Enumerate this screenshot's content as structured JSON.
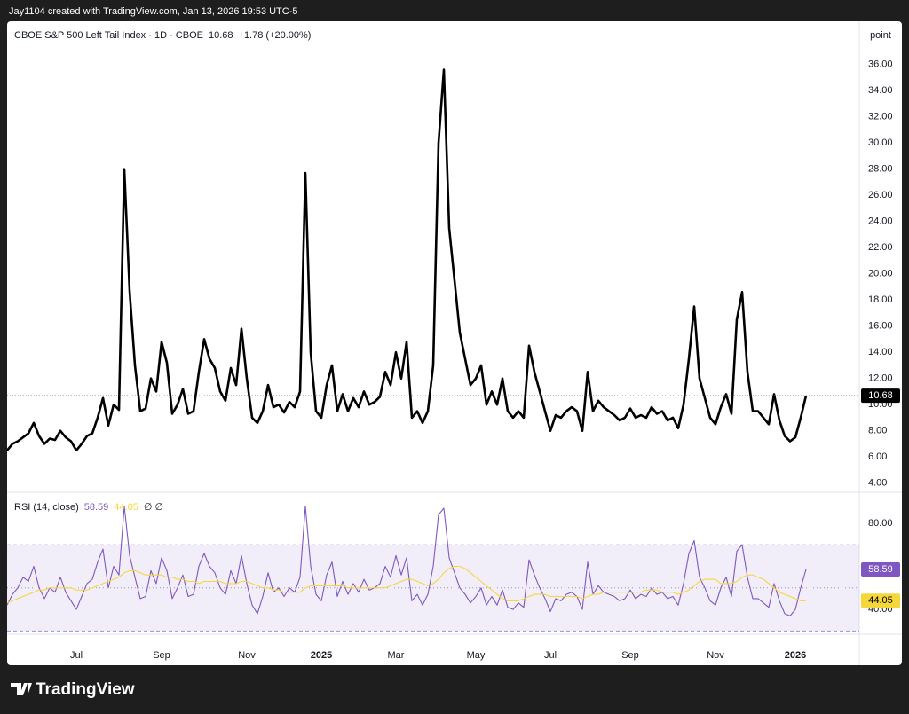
{
  "header": {
    "credit": "Jay1104 created with TradingView.com, Jan 13, 2026 19:53 UTC-5",
    "brand": "TradingView"
  },
  "chart_data": [
    {
      "type": "line",
      "axis_unit": "point",
      "series": [
        {
          "name": "CBOE S&P 500 Left Tail Index · 1D · CBOE",
          "color": "#000000",
          "values": [
            6.5,
            7.0,
            7.2,
            7.5,
            7.8,
            8.6,
            7.6,
            7.0,
            7.4,
            7.3,
            8.0,
            7.5,
            7.2,
            6.5,
            7.0,
            7.6,
            7.8,
            9.0,
            10.5,
            8.4,
            10.0,
            9.6,
            28.0,
            18.7,
            13.0,
            9.5,
            9.7,
            12.0,
            11.0,
            14.8,
            13.2,
            9.3,
            10.0,
            11.2,
            9.3,
            9.5,
            12.5,
            15.0,
            13.5,
            12.8,
            11.0,
            10.3,
            12.8,
            11.5,
            15.8,
            12.0,
            9.0,
            8.6,
            9.5,
            11.5,
            9.8,
            10.0,
            9.4,
            10.2,
            9.8,
            11.0,
            27.7,
            14.0,
            9.5,
            9.0,
            11.5,
            13.0,
            9.5,
            10.8,
            9.5,
            10.5,
            9.8,
            11.0,
            10.0,
            10.2,
            10.6,
            12.5,
            11.5,
            14.0,
            12.0,
            14.8,
            9.0,
            9.5,
            8.6,
            9.5,
            13.0,
            30.0,
            35.6,
            23.5,
            19.5,
            15.5,
            13.5,
            11.5,
            12.0,
            13.0,
            10.0,
            11.0,
            10.0,
            12.0,
            9.5,
            9.0,
            9.5,
            9.0,
            14.5,
            12.5,
            11.0,
            9.5,
            8.0,
            9.2,
            9.0,
            9.5,
            9.8,
            9.5,
            8.0,
            12.5,
            9.5,
            10.3,
            9.8,
            9.5,
            9.2,
            8.8,
            9.0,
            9.7,
            9.0,
            9.2,
            9.0,
            9.8,
            9.3,
            9.5,
            8.8,
            9.0,
            8.2,
            10.0,
            13.5,
            17.5,
            12.0,
            10.5,
            9.0,
            8.5,
            9.8,
            10.8,
            9.3,
            16.5,
            18.6,
            12.5,
            9.5,
            9.5,
            9.0,
            8.5,
            10.8,
            8.8,
            7.6,
            7.2,
            7.5,
            9.0,
            10.68
          ]
        }
      ],
      "change": "+1.78 (+20.00%)",
      "xlim": [
        0,
        160
      ],
      "xticks": [
        {
          "value": 13,
          "label": "Jul"
        },
        {
          "value": 29,
          "label": "Sep"
        },
        {
          "value": 45,
          "label": "Nov"
        },
        {
          "value": 59,
          "label": "2025"
        },
        {
          "value": 73,
          "label": "Mar"
        },
        {
          "value": 88,
          "label": "May"
        },
        {
          "value": 102,
          "label": "Jul"
        },
        {
          "value": 117,
          "label": "Sep"
        },
        {
          "value": 133,
          "label": "Nov"
        },
        {
          "value": 148,
          "label": "2026"
        }
      ],
      "ylim": [
        3.3,
        39.3
      ],
      "yticks": [
        {
          "value": 4,
          "label": "4.00"
        },
        {
          "value": 6,
          "label": "6.00"
        },
        {
          "value": 8,
          "label": "8.00"
        },
        {
          "value": 10,
          "label": "10.00"
        },
        {
          "value": 12,
          "label": "12.00"
        },
        {
          "value": 14,
          "label": "14.00"
        },
        {
          "value": 16,
          "label": "16.00"
        },
        {
          "value": 18,
          "label": "18.00"
        },
        {
          "value": 20,
          "label": "20.00"
        },
        {
          "value": 22,
          "label": "22.00"
        },
        {
          "value": 24,
          "label": "24.00"
        },
        {
          "value": 26,
          "label": "26.00"
        },
        {
          "value": 28,
          "label": "28.00"
        },
        {
          "value": 30,
          "label": "30.00"
        },
        {
          "value": 32,
          "label": "32.00"
        },
        {
          "value": 34,
          "label": "34.00"
        },
        {
          "value": 36,
          "label": "36.00"
        }
      ]
    },
    {
      "type": "line",
      "title": "RSI (14, close)",
      "legend_extra": "∅ ∅",
      "series": [
        {
          "color": "#7e57c2",
          "values": [
            42,
            47,
            50,
            55,
            53,
            60,
            50,
            45,
            50,
            48,
            55,
            48,
            44,
            40,
            46,
            52,
            54,
            62,
            68,
            50,
            60,
            56,
            88,
            65,
            55,
            45,
            46,
            58,
            52,
            64,
            58,
            45,
            50,
            56,
            46,
            47,
            60,
            66,
            60,
            57,
            50,
            47,
            58,
            52,
            65,
            52,
            42,
            38,
            46,
            57,
            48,
            50,
            46,
            50,
            48,
            55,
            88,
            60,
            47,
            44,
            56,
            62,
            46,
            53,
            47,
            52,
            48,
            54,
            49,
            50,
            52,
            60,
            55,
            65,
            56,
            64,
            44,
            47,
            42,
            47,
            60,
            84,
            87,
            64,
            57,
            50,
            47,
            43,
            46,
            50,
            42,
            46,
            42,
            49,
            41,
            40,
            43,
            41,
            63,
            56,
            50,
            45,
            39,
            45,
            44,
            47,
            48,
            46,
            40,
            62,
            47,
            51,
            48,
            47,
            46,
            44,
            45,
            49,
            45,
            47,
            46,
            50,
            47,
            48,
            45,
            46,
            42,
            52,
            66,
            72,
            55,
            50,
            44,
            42,
            50,
            55,
            46,
            67,
            70,
            55,
            45,
            45,
            43,
            41,
            52,
            44,
            38,
            37,
            40,
            50,
            58.59
          ]
        },
        {
          "color": "#f5d73a",
          "values": [
            43,
            44,
            45,
            46,
            47,
            48,
            49,
            49,
            50,
            50,
            50,
            50,
            50,
            49,
            49,
            49,
            50,
            51,
            52,
            53,
            54,
            55,
            57,
            58,
            58,
            57,
            56,
            56,
            56,
            56,
            55,
            55,
            54,
            54,
            53,
            53,
            52,
            53,
            53,
            53,
            53,
            52,
            52,
            52,
            53,
            53,
            52,
            51,
            50,
            50,
            49,
            49,
            48,
            48,
            48,
            48,
            50,
            51,
            51,
            51,
            51,
            51,
            51,
            51,
            50,
            50,
            50,
            50,
            50,
            50,
            50,
            50,
            51,
            52,
            53,
            54,
            54,
            53,
            52,
            51,
            52,
            54,
            57,
            59,
            60,
            60,
            59,
            57,
            55,
            53,
            51,
            49,
            47,
            45,
            44,
            44,
            44,
            45,
            46,
            47,
            47,
            47,
            46,
            46,
            46,
            46,
            46,
            46,
            45,
            46,
            47,
            47,
            48,
            48,
            48,
            48,
            48,
            48,
            48,
            48,
            49,
            49,
            49,
            48,
            48,
            48,
            47,
            48,
            49,
            51,
            53,
            54,
            54,
            54,
            52,
            52,
            52,
            53,
            55,
            56,
            56,
            55,
            54,
            52,
            50,
            48,
            47,
            46,
            45,
            44,
            44.05
          ]
        }
      ],
      "bands": {
        "upper": 70,
        "middle": 50,
        "lower": 30
      },
      "ylim": [
        28.5,
        94.4
      ],
      "yticks": [
        {
          "value": 40,
          "label": "40.00"
        },
        {
          "value": 80,
          "label": "80.00"
        }
      ]
    }
  ]
}
